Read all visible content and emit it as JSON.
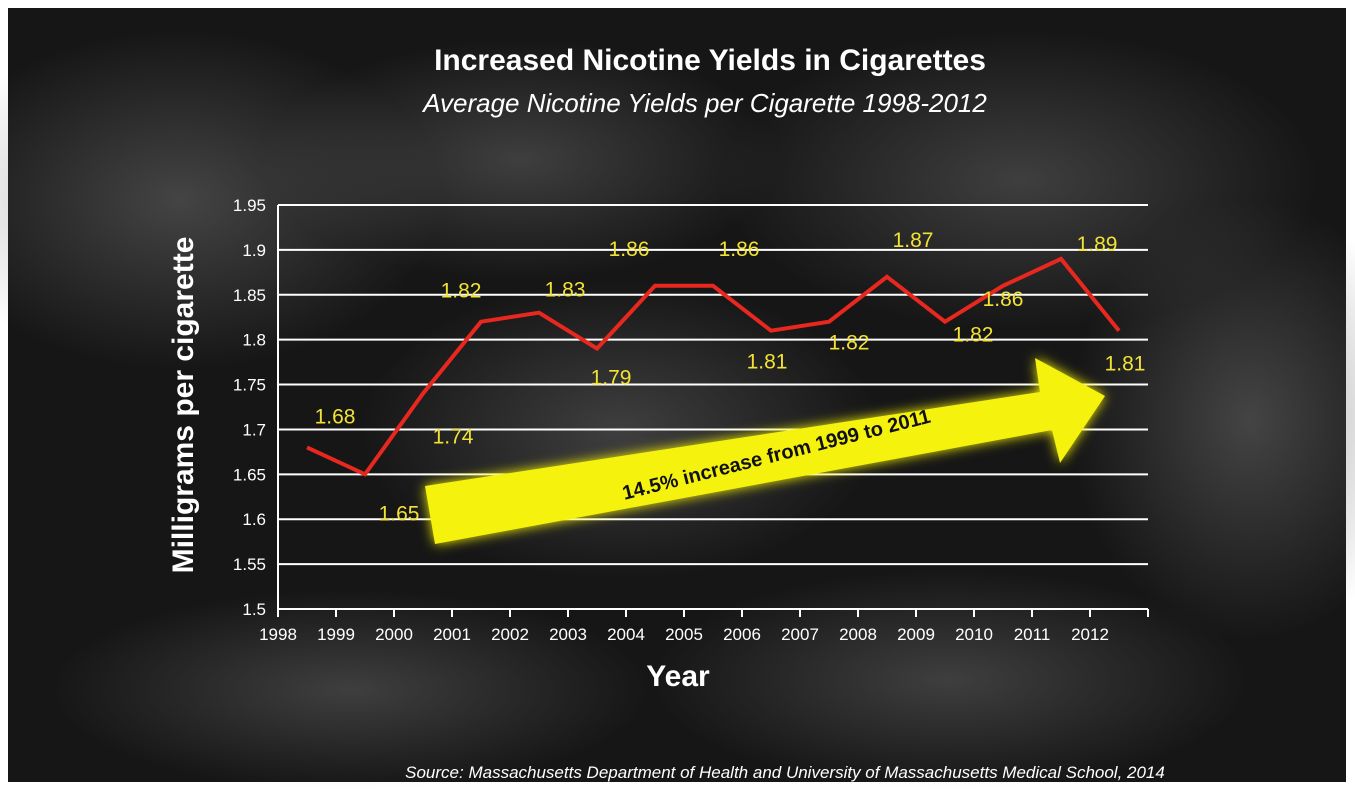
{
  "chart_data": {
    "type": "line",
    "title": "Increased Nicotine Yields in Cigarettes",
    "subtitle": "Average Nicotine Yields per Cigarette 1998-2012",
    "xlabel": "Year",
    "ylabel": "Milligrams per cigarette",
    "x_ticks": [
      "1998",
      "1999",
      "2000",
      "2001",
      "2002",
      "2003",
      "2004",
      "2005",
      "2006",
      "2007",
      "2008",
      "2009",
      "2010",
      "2011",
      "2012"
    ],
    "y_ticks": [
      "1.95",
      "1.9",
      "1.85",
      "1.8",
      "1.75",
      "1.7",
      "1.65",
      "1.6",
      "1.55",
      "1.5"
    ],
    "ylim": [
      1.5,
      1.95
    ],
    "grid": true,
    "series": [
      {
        "points": [
          {
            "x": 1998.5,
            "y": 1.68,
            "label": "1.68"
          },
          {
            "x": 1999.5,
            "y": 1.65,
            "label": "1.65"
          },
          {
            "x": 2000.5,
            "y": 1.74,
            "label": "1.74"
          },
          {
            "x": 2001.5,
            "y": 1.82,
            "label": "1.82"
          },
          {
            "x": 2002.5,
            "y": 1.83,
            "label": "1.83"
          },
          {
            "x": 2003.5,
            "y": 1.79,
            "label": "1.79"
          },
          {
            "x": 2004.5,
            "y": 1.86,
            "label": "1.86"
          },
          {
            "x": 2005.5,
            "y": 1.86,
            "label": "1.86"
          },
          {
            "x": 2006.5,
            "y": 1.81,
            "label": "1.81"
          },
          {
            "x": 2007.5,
            "y": 1.82,
            "label": "1.82"
          },
          {
            "x": 2008.5,
            "y": 1.87,
            "label": "1.87"
          },
          {
            "x": 2009.5,
            "y": 1.82,
            "label": "1.82"
          },
          {
            "x": 2010.5,
            "y": 1.86,
            "label": "1.86"
          },
          {
            "x": 2011.5,
            "y": 1.89,
            "label": "1.89"
          },
          {
            "x": 2012.5,
            "y": 1.81,
            "label": "1.81"
          }
        ]
      }
    ],
    "annotation": "14.5% increase from 1999 to 2011",
    "source": "Source: Massachusetts Department of Health and University of Massachusetts Medical School, 2014"
  },
  "colors": {
    "line": "#e8281e",
    "data_label": "#f2e234",
    "arrow": "#f5f20a",
    "grid": "#ffffff",
    "background": "#151515"
  }
}
